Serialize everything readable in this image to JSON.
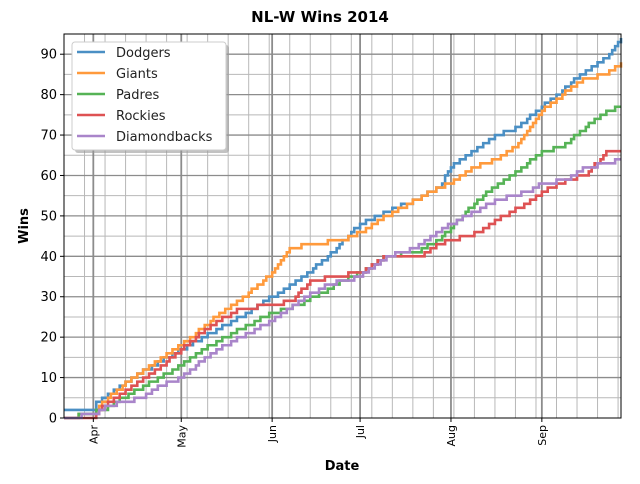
{
  "chart_data": {
    "type": "line",
    "title": "NL-W Wins 2014",
    "xlabel": "Date",
    "ylabel": "Wins",
    "x_unit": "days since Mar 22, 2014",
    "xlim": [
      0,
      190
    ],
    "ylim": [
      0,
      95
    ],
    "yticks": [
      0,
      10,
      20,
      30,
      40,
      50,
      60,
      70,
      80,
      90
    ],
    "xticks": [
      {
        "label": "Apr",
        "day": 10
      },
      {
        "label": "May",
        "day": 40
      },
      {
        "label": "Jun",
        "day": 71
      },
      {
        "label": "Jul",
        "day": 101
      },
      {
        "label": "Aug",
        "day": 132
      },
      {
        "label": "Sep",
        "day": 163
      }
    ],
    "grid": true,
    "legend_position": "top-left",
    "series": [
      {
        "name": "Dodgers",
        "color": "#4a8fc4",
        "points": [
          [
            0,
            2
          ],
          [
            10,
            2
          ],
          [
            11,
            4
          ],
          [
            20,
            8
          ],
          [
            28,
            12
          ],
          [
            40,
            17
          ],
          [
            50,
            21
          ],
          [
            60,
            25
          ],
          [
            71,
            30
          ],
          [
            80,
            34
          ],
          [
            90,
            40
          ],
          [
            101,
            48
          ],
          [
            110,
            51
          ],
          [
            120,
            54
          ],
          [
            128,
            57
          ],
          [
            132,
            62
          ],
          [
            140,
            66
          ],
          [
            148,
            70
          ],
          [
            155,
            72
          ],
          [
            163,
            77
          ],
          [
            170,
            81
          ],
          [
            178,
            86
          ],
          [
            185,
            89
          ],
          [
            190,
            94
          ]
        ]
      },
      {
        "name": "Giants",
        "color": "#ff9a3c",
        "points": [
          [
            0,
            0
          ],
          [
            10,
            1
          ],
          [
            12,
            3
          ],
          [
            20,
            8
          ],
          [
            30,
            13
          ],
          [
            40,
            18
          ],
          [
            50,
            24
          ],
          [
            60,
            29
          ],
          [
            71,
            36
          ],
          [
            77,
            42
          ],
          [
            85,
            43
          ],
          [
            95,
            44
          ],
          [
            101,
            46
          ],
          [
            110,
            50
          ],
          [
            120,
            54
          ],
          [
            128,
            57
          ],
          [
            132,
            58
          ],
          [
            140,
            62
          ],
          [
            148,
            64
          ],
          [
            155,
            68
          ],
          [
            163,
            76
          ],
          [
            170,
            80
          ],
          [
            178,
            84
          ],
          [
            185,
            85
          ],
          [
            190,
            88
          ]
        ]
      },
      {
        "name": "Padres",
        "color": "#56b356",
        "points": [
          [
            0,
            0
          ],
          [
            9,
            1
          ],
          [
            13,
            2
          ],
          [
            20,
            5
          ],
          [
            30,
            9
          ],
          [
            40,
            13
          ],
          [
            50,
            18
          ],
          [
            60,
            22
          ],
          [
            71,
            26
          ],
          [
            80,
            28
          ],
          [
            88,
            31
          ],
          [
            95,
            34
          ],
          [
            101,
            36
          ],
          [
            110,
            40
          ],
          [
            120,
            41
          ],
          [
            128,
            44
          ],
          [
            132,
            47
          ],
          [
            140,
            53
          ],
          [
            148,
            58
          ],
          [
            155,
            61
          ],
          [
            163,
            66
          ],
          [
            170,
            67
          ],
          [
            178,
            72
          ],
          [
            185,
            76
          ],
          [
            190,
            77
          ]
        ]
      },
      {
        "name": "Rockies",
        "color": "#de5253",
        "points": [
          [
            0,
            0
          ],
          [
            10,
            0
          ],
          [
            12,
            2
          ],
          [
            20,
            6
          ],
          [
            30,
            11
          ],
          [
            40,
            17
          ],
          [
            50,
            23
          ],
          [
            60,
            27
          ],
          [
            71,
            28
          ],
          [
            78,
            29
          ],
          [
            84,
            34
          ],
          [
            93,
            35
          ],
          [
            101,
            36
          ],
          [
            110,
            40
          ],
          [
            122,
            40
          ],
          [
            128,
            43
          ],
          [
            132,
            44
          ],
          [
            142,
            46
          ],
          [
            150,
            50
          ],
          [
            158,
            53
          ],
          [
            163,
            56
          ],
          [
            172,
            59
          ],
          [
            178,
            60
          ],
          [
            185,
            66
          ],
          [
            190,
            66
          ]
        ]
      },
      {
        "name": "Diamondbacks",
        "color": "#a985ca",
        "points": [
          [
            0,
            0
          ],
          [
            11,
            1
          ],
          [
            15,
            3
          ],
          [
            20,
            4
          ],
          [
            27,
            5
          ],
          [
            33,
            8
          ],
          [
            40,
            10
          ],
          [
            50,
            16
          ],
          [
            60,
            20
          ],
          [
            71,
            24
          ],
          [
            80,
            29
          ],
          [
            90,
            33
          ],
          [
            101,
            35
          ],
          [
            110,
            40
          ],
          [
            120,
            42
          ],
          [
            128,
            46
          ],
          [
            132,
            48
          ],
          [
            140,
            51
          ],
          [
            148,
            54
          ],
          [
            158,
            56
          ],
          [
            163,
            58
          ],
          [
            172,
            59
          ],
          [
            178,
            62
          ],
          [
            185,
            63
          ],
          [
            190,
            64
          ]
        ]
      }
    ]
  }
}
